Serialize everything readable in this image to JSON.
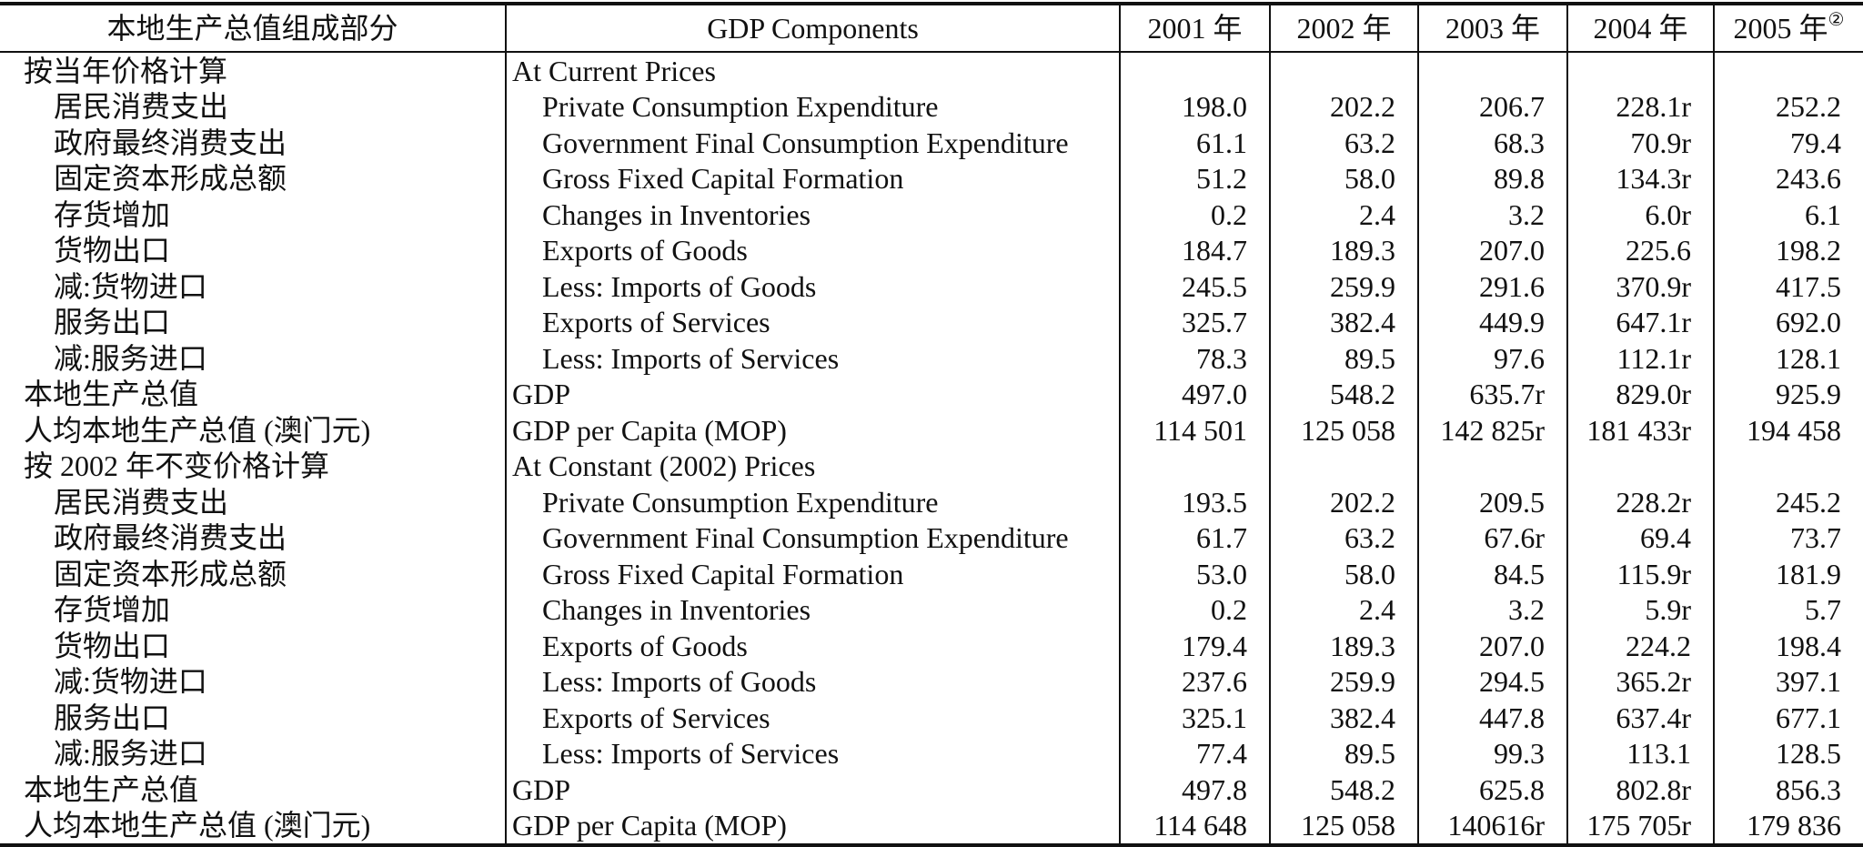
{
  "header": {
    "component_cn": "本地生产总值组成部分",
    "component_en": "GDP Components",
    "years": [
      "2001 年",
      "2002 年",
      "2003 年",
      "2004 年",
      "2005 年"
    ],
    "year_note": "②"
  },
  "sections": [
    {
      "title_cn": "按当年价格计算",
      "title_en": "At Current Prices",
      "components": [
        {
          "cn": "居民消费支出",
          "en": "Private Consumption Expenditure",
          "values": [
            "198.0",
            "202.2",
            "206.7",
            "228.1r",
            "252.2"
          ]
        },
        {
          "cn": "政府最终消费支出",
          "en": "Government Final Consumption Expenditure",
          "values": [
            "61.1",
            "63.2",
            "68.3",
            "70.9r",
            "79.4"
          ]
        },
        {
          "cn": "固定资本形成总额",
          "en": "Gross Fixed Capital Formation",
          "values": [
            "51.2",
            "58.0",
            "89.8",
            "134.3r",
            "243.6"
          ]
        },
        {
          "cn": "存货增加",
          "en": "Changes in Inventories",
          "values": [
            "0.2",
            "2.4",
            "3.2",
            "6.0r",
            "6.1"
          ]
        },
        {
          "cn": "货物出口",
          "en": "Exports of Goods",
          "values": [
            "184.7",
            "189.3",
            "207.0",
            "225.6",
            "198.2"
          ]
        },
        {
          "cn": "减:货物进口",
          "en": "Less: Imports of Goods",
          "values": [
            "245.5",
            "259.9",
            "291.6",
            "370.9r",
            "417.5"
          ]
        },
        {
          "cn": "服务出口",
          "en": "Exports of Services",
          "values": [
            "325.7",
            "382.4",
            "449.9",
            "647.1r",
            "692.0"
          ]
        },
        {
          "cn": "减:服务进口",
          "en": "Less: Imports of Services",
          "values": [
            "78.3",
            "89.5",
            "97.6",
            "112.1r",
            "128.1"
          ]
        }
      ],
      "totals": [
        {
          "cn": "本地生产总值",
          "en": "GDP",
          "values": [
            "497.0",
            "548.2",
            "635.7r",
            "829.0r",
            "925.9"
          ]
        },
        {
          "cn": "人均本地生产总值 (澳门元)",
          "en": "GDP per Capita (MOP)",
          "values": [
            "114 501",
            "125 058",
            "142 825r",
            "181 433r",
            "194 458"
          ]
        }
      ]
    },
    {
      "title_cn": "按 2002 年不变价格计算",
      "title_en": "At Constant (2002) Prices",
      "components": [
        {
          "cn": "居民消费支出",
          "en": "Private Consumption Expenditure",
          "values": [
            "193.5",
            "202.2",
            "209.5",
            "228.2r",
            "245.2"
          ]
        },
        {
          "cn": "政府最终消费支出",
          "en": "Government Final Consumption Expenditure",
          "values": [
            "61.7",
            "63.2",
            "67.6r",
            "69.4",
            "73.7"
          ]
        },
        {
          "cn": "固定资本形成总额",
          "en": "Gross Fixed Capital Formation",
          "values": [
            "53.0",
            "58.0",
            "84.5",
            "115.9r",
            "181.9"
          ]
        },
        {
          "cn": "存货增加",
          "en": "Changes in Inventories",
          "values": [
            "0.2",
            "2.4",
            "3.2",
            "5.9r",
            "5.7"
          ]
        },
        {
          "cn": "货物出口",
          "en": "Exports of Goods",
          "values": [
            "179.4",
            "189.3",
            "207.0",
            "224.2",
            "198.4"
          ]
        },
        {
          "cn": "减:货物进口",
          "en": "Less: Imports of Goods",
          "values": [
            "237.6",
            "259.9",
            "294.5",
            "365.2r",
            "397.1"
          ]
        },
        {
          "cn": "服务出口",
          "en": "Exports of Services",
          "values": [
            "325.1",
            "382.4",
            "447.8",
            "637.4r",
            "677.1"
          ]
        },
        {
          "cn": "减:服务进口",
          "en": "Less: Imports of Services",
          "values": [
            "77.4",
            "89.5",
            "99.3",
            "113.1",
            "128.5"
          ]
        }
      ],
      "totals": [
        {
          "cn": "本地生产总值",
          "en": "GDP",
          "values": [
            "497.8",
            "548.2",
            "625.8",
            "802.8r",
            "856.3"
          ]
        },
        {
          "cn": "人均本地生产总值 (澳门元)",
          "en": "GDP per Capita (MOP)",
          "values": [
            "114 648",
            "125 058",
            "140616r",
            "175 705r",
            "179 836"
          ]
        }
      ]
    }
  ]
}
